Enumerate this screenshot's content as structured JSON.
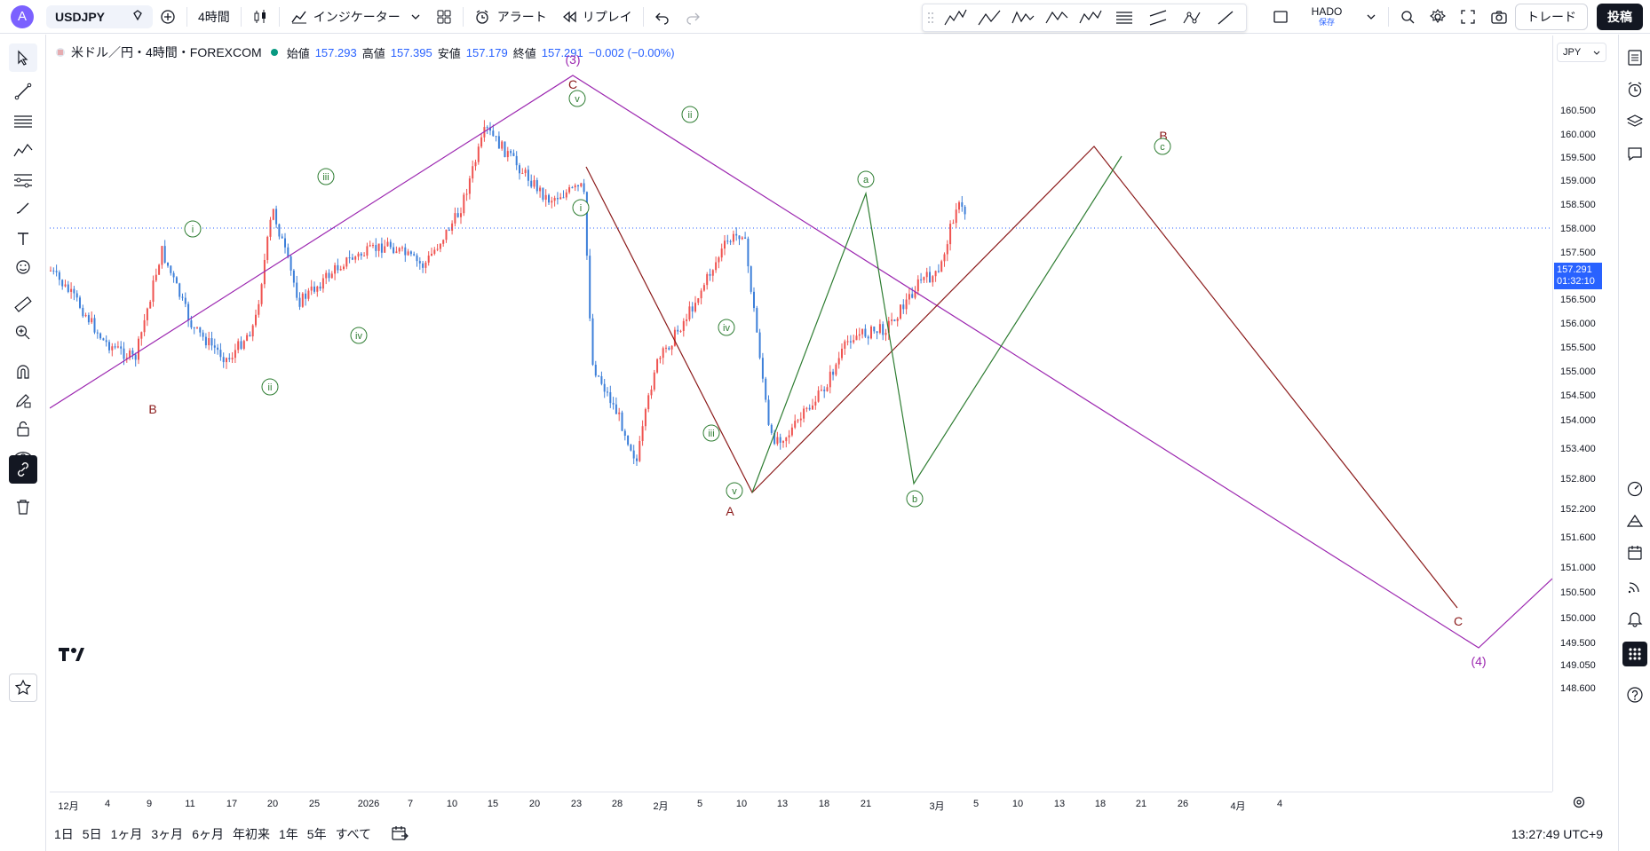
{
  "topbar": {
    "avatar_letter": "A",
    "symbol": "USDJPY",
    "interval": "4時間",
    "indicators_label": "インジケーター",
    "alert_label": "アラート",
    "replay_label": "リプレイ",
    "layout_name": "HADO",
    "layout_sub": "保存",
    "trade_label": "トレード",
    "post_label": "投稿"
  },
  "legend": {
    "title": "米ドル／円・4時間・FOREXCOM",
    "open_label": "始値",
    "open": "157.293",
    "high_label": "高値",
    "high": "157.395",
    "low_label": "安値",
    "low": "157.179",
    "close_label": "終値",
    "close": "157.291",
    "change": "−0.002 (−0.00%)"
  },
  "price_scale": {
    "currency": "JPY",
    "ticks": [
      "160.500",
      "160.000",
      "159.500",
      "159.000",
      "158.500",
      "158.000",
      "157.500",
      "156.500",
      "156.000",
      "155.500",
      "155.000",
      "154.500",
      "154.000",
      "153.400",
      "152.800",
      "152.200",
      "151.600",
      "151.000",
      "150.500",
      "150.000",
      "149.500",
      "149.050",
      "148.600"
    ],
    "current_price": "157.291",
    "countdown": "01:32:10"
  },
  "time_scale": {
    "ticks": [
      "12月",
      "4",
      "9",
      "11",
      "17",
      "20",
      "25",
      "2026",
      "7",
      "10",
      "15",
      "20",
      "23",
      "28",
      "2月",
      "5",
      "10",
      "13",
      "18",
      "21",
      "3月",
      "5",
      "10",
      "13",
      "18",
      "21",
      "26",
      "4月",
      "4"
    ]
  },
  "bottombar": {
    "ranges": [
      "1日",
      "5日",
      "1ヶ月",
      "3ヶ月",
      "6ヶ月",
      "年初来",
      "1年",
      "5年",
      "すべて"
    ],
    "clock": "13:27:49 UTC+9"
  },
  "chart_data": {
    "type": "candlestick",
    "title": "米ドル／円・4時間・FOREXCOM",
    "y_range": [
      148.6,
      160.5
    ],
    "wave_labels": {
      "purple": [
        "(3)",
        "(4)"
      ],
      "red": [
        "B",
        "C",
        "A",
        "B",
        "C"
      ],
      "green": [
        "i",
        "ii",
        "iii",
        "iv",
        "v",
        "i",
        "ii",
        "iii",
        "iv",
        "v",
        "a",
        "b",
        "c"
      ]
    }
  },
  "colors": {
    "up": "#ef5350",
    "down": "#2962ff",
    "purple": "#9c27b0",
    "darkred": "#8b1a1a",
    "green": "#2e7d32",
    "accent": "#2962ff"
  }
}
